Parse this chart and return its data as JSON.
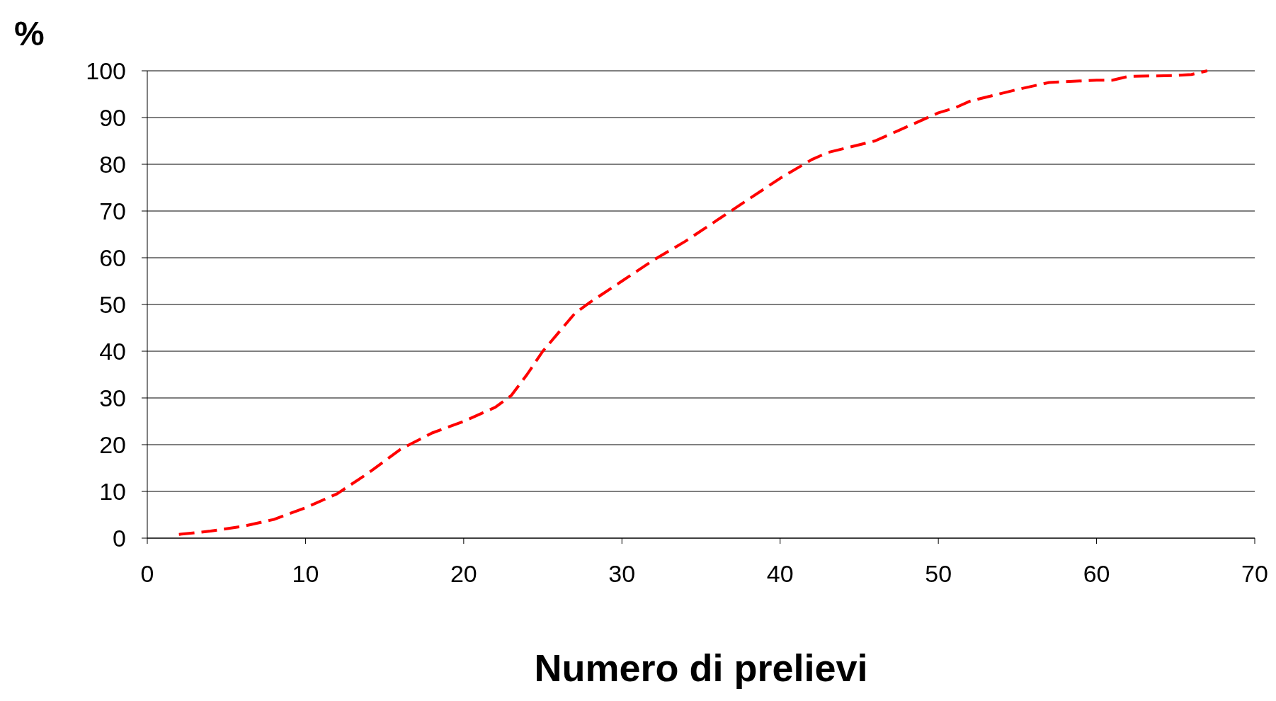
{
  "chart_data": {
    "type": "line",
    "ylabel": "%",
    "xlabel": "Numero di prelievi",
    "xlim": [
      0,
      70
    ],
    "xticks": [
      0,
      10,
      20,
      30,
      40,
      50,
      60,
      70
    ],
    "ylim": [
      0,
      100
    ],
    "yticks": [
      0,
      10,
      20,
      30,
      40,
      50,
      60,
      70,
      80,
      90,
      100
    ],
    "grid": "y",
    "line_style": "dashed",
    "marker": "none",
    "series": [
      {
        "color": "#ff0000",
        "x": [
          2,
          4,
          6,
          8,
          10,
          12,
          14,
          16,
          18,
          20,
          22,
          23,
          24,
          25,
          26,
          27,
          28,
          30,
          32,
          34,
          36,
          38,
          40,
          42,
          43,
          46,
          48,
          50,
          51,
          52,
          55,
          57,
          60,
          61,
          62,
          65,
          66,
          67
        ],
        "values": [
          0.8,
          1.5,
          2.5,
          4,
          6.5,
          9.5,
          14,
          19,
          22.5,
          25,
          28,
          30.5,
          35,
          40,
          44,
          48,
          50.5,
          55,
          59.5,
          63.5,
          68,
          72.5,
          77,
          81,
          82.5,
          85,
          88,
          91,
          92,
          93.5,
          96,
          97.5,
          98,
          98,
          98.8,
          99,
          99.2,
          100
        ]
      }
    ]
  }
}
